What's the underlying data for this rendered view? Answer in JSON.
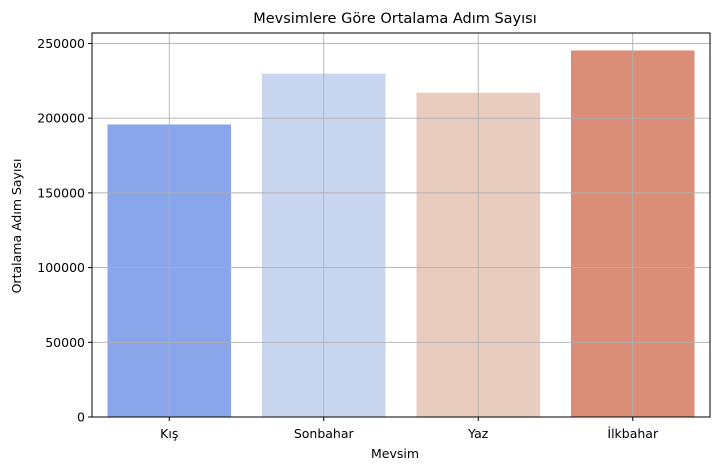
{
  "chart_data": {
    "type": "bar",
    "title": "Mevsimlere Göre Ortalama Adım Sayısı",
    "xlabel": "Mevsim",
    "ylabel": "Ortalama Adım Sayısı",
    "categories": [
      "Kış",
      "Sonbahar",
      "Yaz",
      "İlkbahar"
    ],
    "values": [
      195800,
      229800,
      217000,
      245300
    ],
    "colors": [
      "#8aa6ea",
      "#c8d5ef",
      "#e8ccbe",
      "#db8e77"
    ],
    "ylim": [
      0,
      257000
    ],
    "yticks": [
      0,
      50000,
      100000,
      150000,
      200000,
      250000
    ],
    "grid": true,
    "legend": "none"
  }
}
